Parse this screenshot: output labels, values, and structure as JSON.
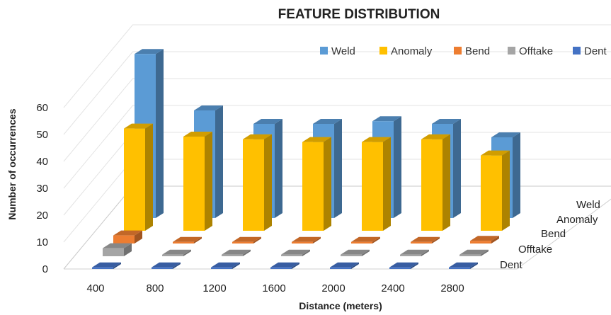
{
  "chart_data": {
    "type": "bar",
    "subtype": "3d-clustered-column",
    "title": "FEATURE DISTRIBUTION",
    "xlabel": "Distance (meters)",
    "ylabel": "Number of occurrences",
    "categories": [
      "400",
      "800",
      "1200",
      "1600",
      "2000",
      "2400",
      "2800"
    ],
    "y_ticks": [
      "0",
      "10",
      "20",
      "30",
      "40",
      "50",
      "60"
    ],
    "ylim": [
      0,
      60
    ],
    "grid": true,
    "legend_position": "top-right",
    "depth_axis": [
      "Dent",
      "Offtake",
      "Bend",
      "Anomaly",
      "Weld"
    ],
    "series": [
      {
        "name": "Weld",
        "color": "#5B9BD5",
        "values": [
          61,
          40,
          35,
          35,
          36,
          35,
          30
        ]
      },
      {
        "name": "Anomaly",
        "color": "#FFC000",
        "values": [
          38,
          35,
          34,
          33,
          33,
          34,
          28
        ]
      },
      {
        "name": "Bend",
        "color": "#ED7D31",
        "values": [
          3,
          0,
          0,
          0,
          0,
          0,
          1
        ]
      },
      {
        "name": "Offtake",
        "color": "#A5A5A5",
        "values": [
          3,
          0,
          0,
          0,
          0,
          0,
          0
        ]
      },
      {
        "name": "Dent",
        "color": "#4472C4",
        "values": [
          0,
          0,
          0,
          0,
          0,
          0,
          0
        ]
      }
    ]
  }
}
